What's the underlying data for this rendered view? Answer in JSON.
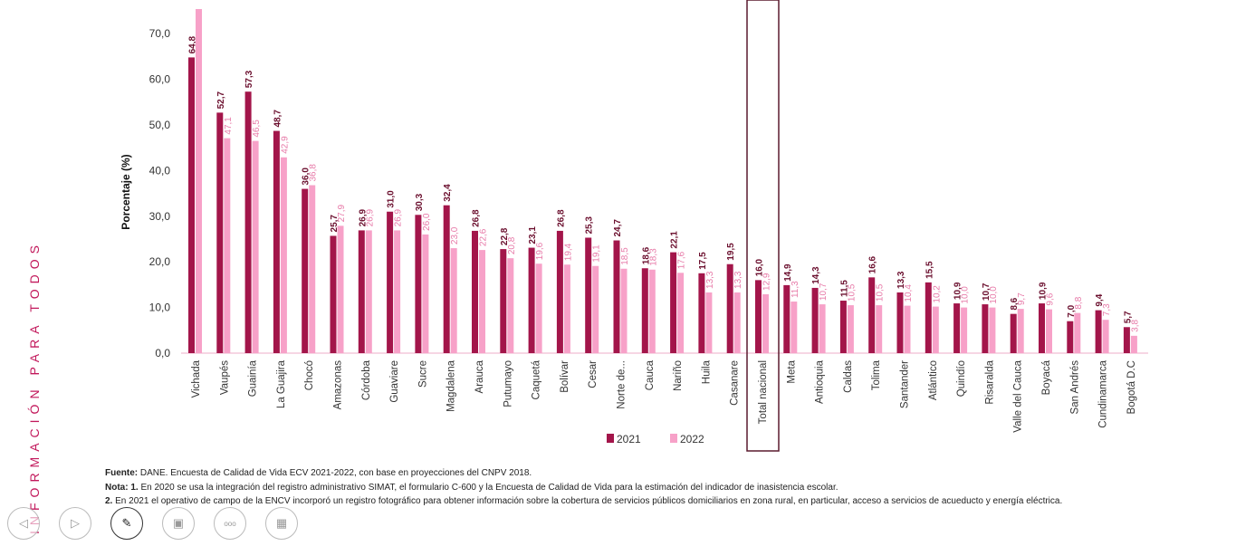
{
  "side_text": "INFORMACIÓN PARA TODOS",
  "chart_data": {
    "type": "bar",
    "ylabel": "Porcentaje  (%)",
    "xlabel": "",
    "ylim": [
      0,
      75
    ],
    "yticks": [
      "0,0",
      "10,0",
      "20,0",
      "30,0",
      "40,0",
      "50,0",
      "60,0",
      "70,0"
    ],
    "grid": false,
    "legend_position": "bottom-center",
    "highlighted_category": "Total nacional",
    "categories": [
      "Vichada",
      "Vaupés",
      "Guainía",
      "La Guajira",
      "Chocó",
      "Amazonas",
      "Córdoba",
      "Guaviare",
      "Sucre",
      "Magdalena",
      "Arauca",
      "Putumayo",
      "Caquetá",
      "Bolívar",
      "Cesar",
      "Norte de...",
      "Cauca",
      "Nariño",
      "Huila",
      "Casanare",
      "Total nacional",
      "Meta",
      "Antioquia",
      "Caldas",
      "Tolima",
      "Santander",
      "Atlántico",
      "Quindío",
      "Risaralda",
      "Valle del Cauca",
      "Boyacá",
      "San Andrés",
      "Cundinamarca",
      "Bogotá D.C"
    ],
    "series": [
      {
        "name": "2021",
        "color": "#a3154a",
        "values": [
          64.8,
          52.7,
          57.3,
          48.7,
          36.0,
          25.7,
          26.9,
          31.0,
          30.3,
          32.4,
          26.8,
          22.8,
          23.1,
          26.8,
          25.3,
          24.7,
          18.6,
          22.1,
          17.5,
          19.5,
          16.0,
          14.9,
          14.3,
          11.5,
          16.6,
          13.3,
          15.5,
          10.9,
          10.7,
          8.6,
          10.9,
          7.0,
          9.4,
          5.7
        ],
        "labels": [
          "64,8",
          "52,7",
          "57,3",
          "48,7",
          "36,0",
          "25,7",
          "26,9",
          "31,0",
          "30,3",
          "32,4",
          "26,8",
          "22,8",
          "23,1",
          "26,8",
          "25,3",
          "24,7",
          "18,6",
          "22,1",
          "17,5",
          "19,5",
          "16,0",
          "14,9",
          "14,3",
          "11,5",
          "16,6",
          "13,3",
          "15,5",
          "10,9",
          "10,7",
          "8,6",
          "10,9",
          "7,0",
          "9,4",
          "5,7"
        ]
      },
      {
        "name": "2022",
        "color": "#f7a1c8",
        "values": [
          75.4,
          47.1,
          46.5,
          42.9,
          36.8,
          27.9,
          26.9,
          26.9,
          26.0,
          23.0,
          22.6,
          20.8,
          19.6,
          19.4,
          19.1,
          18.5,
          18.3,
          17.6,
          13.3,
          13.3,
          12.9,
          11.3,
          10.7,
          10.5,
          10.5,
          10.4,
          10.2,
          10.0,
          10.0,
          9.7,
          9.6,
          8.8,
          7.3,
          3.8
        ],
        "labels": [
          "",
          "47,1",
          "46,5",
          "42,9",
          "36,8",
          "27,9",
          "26,9",
          "26,9",
          "26,0",
          "23,0",
          "22,6",
          "20,8",
          "19,6",
          "19,4",
          "19,1",
          "18,5",
          "18,3",
          "17,6",
          "13,3",
          "13,3",
          "12,9",
          "11,3",
          "10,7",
          "10,5",
          "10,5",
          "10,4",
          "10,2",
          "10,0",
          "10,0",
          "9,7",
          "9,6",
          "8,8",
          "7,3",
          "3,8"
        ]
      }
    ]
  },
  "notes": {
    "source_label": "Fuente:",
    "source_text": " DANE. Encuesta de Calidad de Vida ECV 2021-2022, con base en proyecciones del CNPV 2018.",
    "note_label": "Nota: 1.",
    "note1_text": " En 2020 se usa la integración del registro administrativo SIMAT, el formulario C-600 y la Encuesta de Calidad de Vida para la estimación del indicador de inasistencia escolar.",
    "note2_label": "2.",
    "note2_text": " En 2021 el operativo de campo de la ENCV incorporó un registro fotográfico para obtener información sobre la cobertura de servicios públicos domiciliarios en zona rural, en particular, acceso a servicios de acueducto y energía eléctrica."
  },
  "controls": [
    {
      "name": "previous-slide-button",
      "icon": "triangle-left-icon",
      "glyph": "◁"
    },
    {
      "name": "next-slide-button",
      "icon": "triangle-right-icon",
      "glyph": "▷"
    },
    {
      "name": "pen-tool-button",
      "icon": "pen-icon",
      "glyph": "✎"
    },
    {
      "name": "slides-view-button",
      "icon": "slides-icon",
      "glyph": "▣"
    },
    {
      "name": "more-options-button",
      "icon": "more-icon",
      "glyph": "ooo"
    },
    {
      "name": "presenter-view-button",
      "icon": "presenter-icon",
      "glyph": "▦"
    }
  ]
}
